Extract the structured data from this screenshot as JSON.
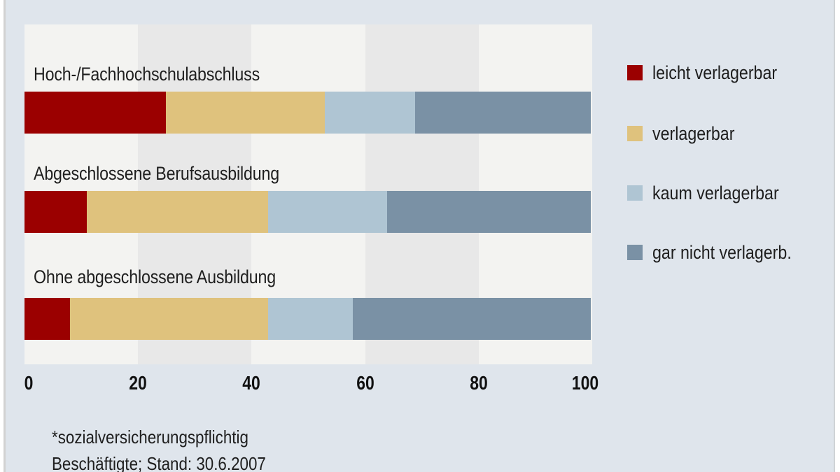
{
  "chart_data": {
    "type": "bar",
    "orientation": "horizontal",
    "stacked": true,
    "title": "",
    "xlabel": "",
    "ylabel": "",
    "xlim": [
      0,
      100
    ],
    "ticks": [
      "0",
      "20",
      "40",
      "60",
      "80",
      "100"
    ],
    "grid": "alternating vertical bands every 20",
    "legend_position": "right",
    "categories": [
      "Hoch-/Fachhochschulabschluss",
      "Abgeschlossene Berufsausbildung",
      "Ohne abgeschlossene Ausbildung"
    ],
    "series": [
      {
        "name": "leicht verlagerbar",
        "color": "#9b0000",
        "values": [
          25,
          11,
          8
        ]
      },
      {
        "name": "verlagerbar",
        "color": "#dfc27d",
        "values": [
          28,
          32,
          35
        ]
      },
      {
        "name": "kaum verlagerbar",
        "color": "#afc5d3",
        "values": [
          16,
          21,
          15
        ]
      },
      {
        "name": "gar nicht verlagerb.",
        "color": "#7a91a5",
        "values": [
          31,
          36,
          42
        ]
      }
    ],
    "footnote": [
      "*sozialversicherungspflichtig",
      "Beschäftigte; Stand: 30.6.2007"
    ]
  },
  "legend": [
    {
      "label": "leicht verlagerbar",
      "color": "#9b0000"
    },
    {
      "label": "verlagerbar",
      "color": "#dfc27d"
    },
    {
      "label": "kaum verlagerbar",
      "color": "#afc5d3"
    },
    {
      "label": "gar nicht verlagerb.",
      "color": "#7a91a5"
    }
  ],
  "colors": {
    "background": "#dfe5ec",
    "plot_light": "#f3f3f1",
    "plot_band": "#e8e8e8"
  }
}
